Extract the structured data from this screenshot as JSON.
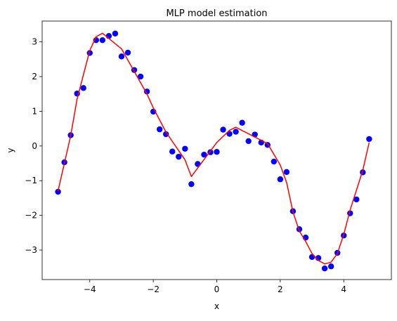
{
  "chart_data": {
    "type": "scatter",
    "title": "MLP model estimation",
    "xlabel": "x",
    "ylabel": "y",
    "xlim": [
      -5.5,
      5.5
    ],
    "ylim": [
      -3.85,
      3.6
    ],
    "xticks": [
      -4,
      -2,
      0,
      2,
      4
    ],
    "xtick_labels": [
      "−4",
      "−2",
      "0",
      "2",
      "4"
    ],
    "yticks": [
      -3,
      -2,
      -1,
      0,
      1,
      2,
      3
    ],
    "ytick_labels": [
      "−3",
      "−2",
      "−1",
      "0",
      "1",
      "2",
      "3"
    ],
    "grid": false,
    "series": [
      {
        "type": "scatter",
        "color": "#0000ff",
        "x": [
          -5.0,
          -4.8,
          -4.6,
          -4.4,
          -4.2,
          -4.0,
          -3.8,
          -3.6,
          -3.4,
          -3.2,
          -3.0,
          -2.8,
          -2.6,
          -2.4,
          -2.2,
          -2.0,
          -1.8,
          -1.6,
          -1.4,
          -1.2,
          -1.0,
          -0.8,
          -0.6,
          -0.4,
          -0.2,
          0.0,
          0.2,
          0.4,
          0.6,
          0.8,
          1.0,
          1.2,
          1.4,
          1.6,
          1.8,
          2.0,
          2.2,
          2.4,
          2.6,
          2.8,
          3.0,
          3.2,
          3.4,
          3.6,
          3.8,
          4.0,
          4.2,
          4.4,
          4.6,
          4.8
        ],
        "y": [
          -1.32,
          -0.47,
          0.31,
          1.51,
          1.67,
          2.68,
          3.05,
          3.05,
          3.17,
          3.24,
          2.58,
          2.69,
          2.19,
          2.0,
          1.57,
          0.99,
          0.48,
          0.34,
          -0.16,
          -0.31,
          -0.08,
          -1.1,
          -0.52,
          -0.25,
          -0.18,
          -0.17,
          0.47,
          0.35,
          0.41,
          0.67,
          0.14,
          0.33,
          0.1,
          0.03,
          -0.45,
          -0.96,
          -0.75,
          -1.88,
          -2.4,
          -2.64,
          -3.2,
          -3.23,
          -3.53,
          -3.47,
          -3.08,
          -2.58,
          -1.94,
          -1.54,
          -0.76,
          0.2
        ]
      },
      {
        "type": "line",
        "color": "#ff0000",
        "x": [
          -5.0,
          -4.6,
          -4.4,
          -4.0,
          -3.8,
          -3.6,
          -3.4,
          -3.0,
          -2.6,
          -2.2,
          -2.0,
          -1.6,
          -1.0,
          -0.8,
          0.0,
          0.4,
          0.6,
          1.6,
          2.0,
          2.2,
          2.4,
          2.6,
          2.8,
          3.0,
          3.2,
          3.4,
          3.6,
          3.8,
          4.0,
          4.2,
          4.6,
          4.8
        ],
        "y": [
          -1.3,
          0.3,
          1.35,
          2.75,
          3.15,
          3.25,
          3.1,
          2.8,
          2.15,
          1.5,
          1.1,
          0.4,
          -0.4,
          -0.88,
          0.1,
          0.45,
          0.54,
          0.07,
          -0.55,
          -1.05,
          -1.9,
          -2.45,
          -2.75,
          -3.1,
          -3.3,
          -3.4,
          -3.35,
          -3.1,
          -2.55,
          -1.85,
          -0.7,
          0.1
        ]
      }
    ]
  }
}
